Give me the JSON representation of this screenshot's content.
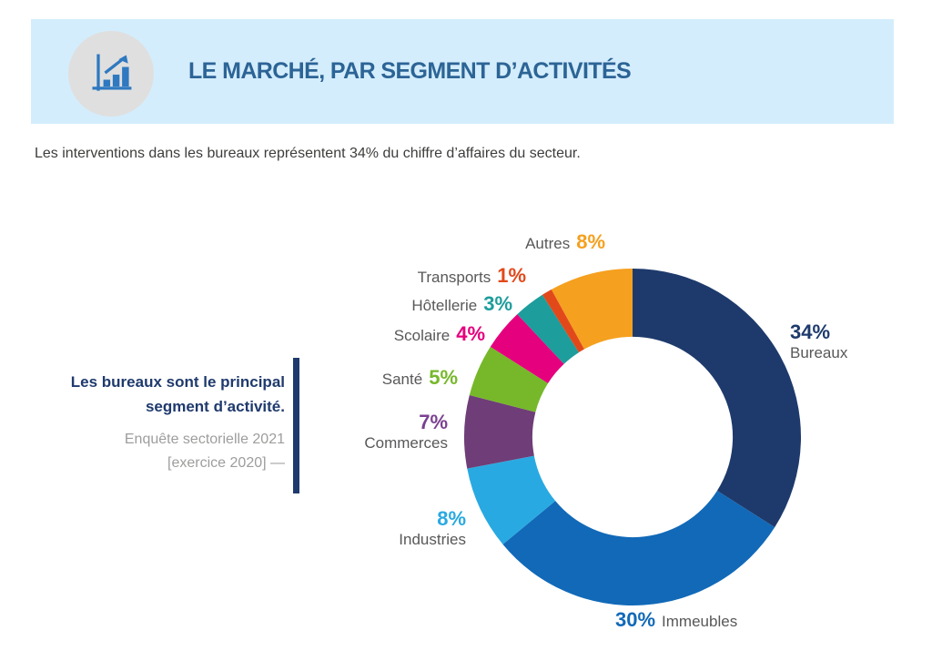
{
  "header": {
    "title": "LE MARCHÉ, PAR SEGMENT D’ACTIVITÉS",
    "band_color": "#d4edfc",
    "title_color": "#2c6496",
    "icon": "bar-chart-growth-icon",
    "icon_color": "#2e79c0",
    "icon_circle_color": "#dfdfdf"
  },
  "intro_text": "Les interventions dans les bureaux représentent 34% du chiffre d’affaires du secteur.",
  "callout": {
    "quote_line1": "Les bureaux sont le principal",
    "quote_line2": "segment d’activité.",
    "source_line1": "Enquête sectorielle 2021",
    "source_line2": "[exercice 2020] —",
    "accent_color": "#1f3a6d",
    "quote_color": "#1f3a6d",
    "source_color": "#9d9d9c"
  },
  "chart_data": {
    "type": "pie",
    "subtype": "donut",
    "title": "Le marché, par segment d’activités",
    "unit": "%",
    "start_angle_deg": 0,
    "direction": "clockwise",
    "inner_radius_ratio": 0.595,
    "label_name_color": "#58585a",
    "segments": [
      {
        "label": "Bureaux",
        "value": 34,
        "pct": "34%",
        "color": "#1e3a6c"
      },
      {
        "label": "Immeubles",
        "value": 30,
        "pct": "30%",
        "color": "#1169b8"
      },
      {
        "label": "Industries",
        "value": 8,
        "pct": "8%",
        "color": "#29a9e1"
      },
      {
        "label": "Commerces",
        "value": 7,
        "pct": "7%",
        "color": "#6f3d77",
        "pct_color": "#7a4191"
      },
      {
        "label": "Santé",
        "value": 5,
        "pct": "5%",
        "color": "#76b82a"
      },
      {
        "label": "Scolaire",
        "value": 4,
        "pct": "4%",
        "color": "#e5007d"
      },
      {
        "label": "Hôtellerie",
        "value": 3,
        "pct": "3%",
        "color": "#1d9d9b"
      },
      {
        "label": "Transports",
        "value": 1,
        "pct": "1%",
        "color": "#e2491a"
      },
      {
        "label": "Autres",
        "value": 8,
        "pct": "8%",
        "color": "#f5a01f"
      }
    ]
  }
}
